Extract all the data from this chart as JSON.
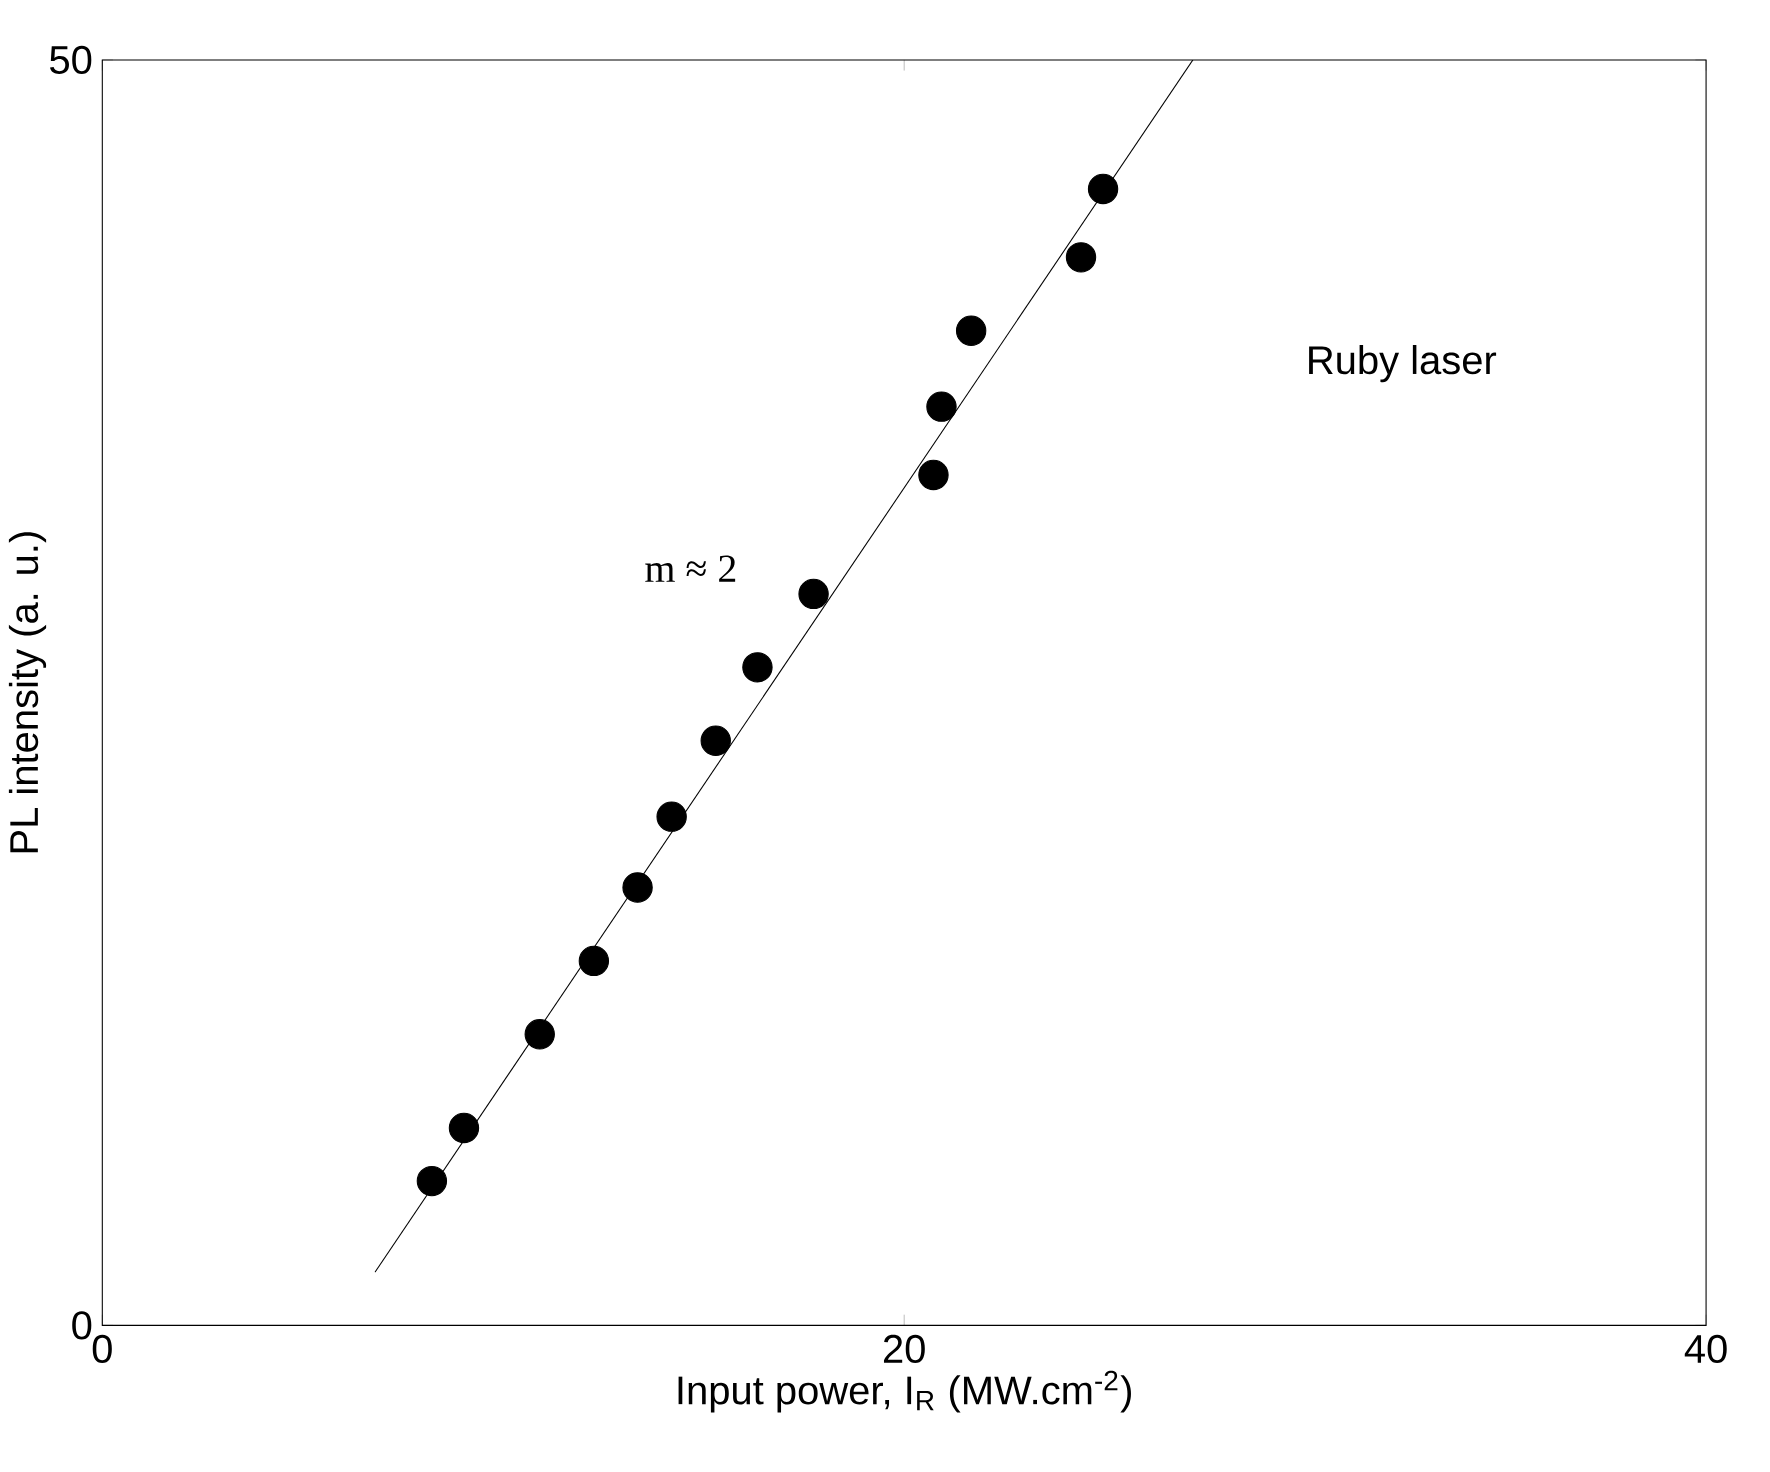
{
  "chart_data": {
    "type": "scatter",
    "xlabel": "Input power, I$_{R}$ (MW.cm$^{-2}$)",
    "ylabel": "PL intensity (a. u.)",
    "xlim": [
      0,
      40
    ],
    "ylim": [
      0,
      50
    ],
    "xticks": [
      0,
      20,
      40
    ],
    "yticks": [
      0,
      50
    ],
    "grid": false,
    "series": [
      {
        "color": "#000000",
        "marker": "circle",
        "x": [
          8.22,
          9.02,
          10.91,
          12.26,
          13.35,
          14.2,
          15.3,
          16.34,
          17.74,
          20.73,
          20.93,
          21.67,
          24.41,
          24.96
        ],
        "values": [
          5.7,
          7.8,
          11.5,
          14.4,
          17.3,
          20.1,
          23.1,
          26.0,
          28.9,
          33.6,
          36.3,
          39.3,
          42.2,
          44.9
        ]
      },
      {
        "type": "line",
        "color": "#000000",
        "x": [
          6.8,
          27.2
        ],
        "values": [
          2.1,
          50
        ],
        "line_style": "solid",
        "marker": "none"
      }
    ],
    "annotations": [
      "m ≈ 2",
      "Ruby laser"
    ]
  }
}
